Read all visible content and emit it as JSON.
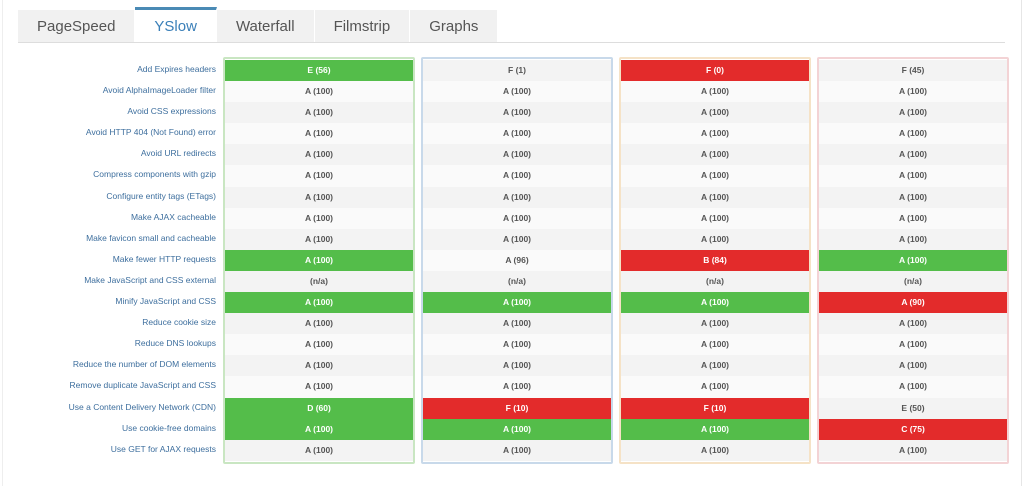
{
  "tabs": [
    {
      "label": "PageSpeed",
      "active": false
    },
    {
      "label": "YSlow",
      "active": true
    },
    {
      "label": "Waterfall",
      "active": false
    },
    {
      "label": "Filmstrip",
      "active": false
    },
    {
      "label": "Graphs",
      "active": false
    }
  ],
  "rules": [
    "Add Expires headers",
    "Avoid AlphaImageLoader filter",
    "Avoid CSS expressions",
    "Avoid HTTP 404 (Not Found) error",
    "Avoid URL redirects",
    "Compress components with gzip",
    "Configure entity tags (ETags)",
    "Make AJAX cacheable",
    "Make favicon small and cacheable",
    "Make fewer HTTP requests",
    "Make JavaScript and CSS external",
    "Minify JavaScript and CSS",
    "Reduce cookie size",
    "Reduce DNS lookups",
    "Reduce the number of DOM elements",
    "Remove duplicate JavaScript and CSS",
    "Use a Content Delivery Network (CDN)",
    "Use cookie-free domains",
    "Use GET for AJAX requests"
  ],
  "colors": {
    "good": "#54bd4a",
    "bad": "#e32b2b"
  },
  "columns": [
    {
      "border": "#c9e6c2",
      "values": [
        "E (56)",
        "A (100)",
        "A (100)",
        "A (100)",
        "A (100)",
        "A (100)",
        "A (100)",
        "A (100)",
        "A (100)",
        "A (100)",
        "(n/a)",
        "A (100)",
        "A (100)",
        "A (100)",
        "A (100)",
        "A (100)",
        "D (60)",
        "A (100)",
        "A (100)"
      ],
      "status": [
        "good",
        "",
        "",
        "",
        "",
        "",
        "",
        "",
        "",
        "good",
        "",
        "good",
        "",
        "",
        "",
        "",
        "good",
        "good",
        ""
      ]
    },
    {
      "border": "#c8d9ea",
      "values": [
        "F (1)",
        "A (100)",
        "A (100)",
        "A (100)",
        "A (100)",
        "A (100)",
        "A (100)",
        "A (100)",
        "A (100)",
        "A (96)",
        "(n/a)",
        "A (100)",
        "A (100)",
        "A (100)",
        "A (100)",
        "A (100)",
        "F (10)",
        "A (100)",
        "A (100)"
      ],
      "status": [
        "",
        "",
        "",
        "",
        "",
        "",
        "",
        "",
        "",
        "",
        "",
        "good",
        "",
        "",
        "",
        "",
        "bad",
        "good",
        ""
      ]
    },
    {
      "border": "#f5e2c6",
      "values": [
        "F (0)",
        "A (100)",
        "A (100)",
        "A (100)",
        "A (100)",
        "A (100)",
        "A (100)",
        "A (100)",
        "A (100)",
        "B (84)",
        "(n/a)",
        "A (100)",
        "A (100)",
        "A (100)",
        "A (100)",
        "A (100)",
        "F (10)",
        "A (100)",
        "A (100)"
      ],
      "status": [
        "bad",
        "",
        "",
        "",
        "",
        "",
        "",
        "",
        "",
        "bad",
        "",
        "good",
        "",
        "",
        "",
        "",
        "bad",
        "good",
        ""
      ]
    },
    {
      "border": "#f3d3d5",
      "values": [
        "F (45)",
        "A (100)",
        "A (100)",
        "A (100)",
        "A (100)",
        "A (100)",
        "A (100)",
        "A (100)",
        "A (100)",
        "A (100)",
        "(n/a)",
        "A (90)",
        "A (100)",
        "A (100)",
        "A (100)",
        "A (100)",
        "E (50)",
        "C (75)",
        "A (100)"
      ],
      "status": [
        "",
        "",
        "",
        "",
        "",
        "",
        "",
        "",
        "",
        "good",
        "",
        "bad",
        "",
        "",
        "",
        "",
        "",
        "bad",
        ""
      ]
    }
  ]
}
